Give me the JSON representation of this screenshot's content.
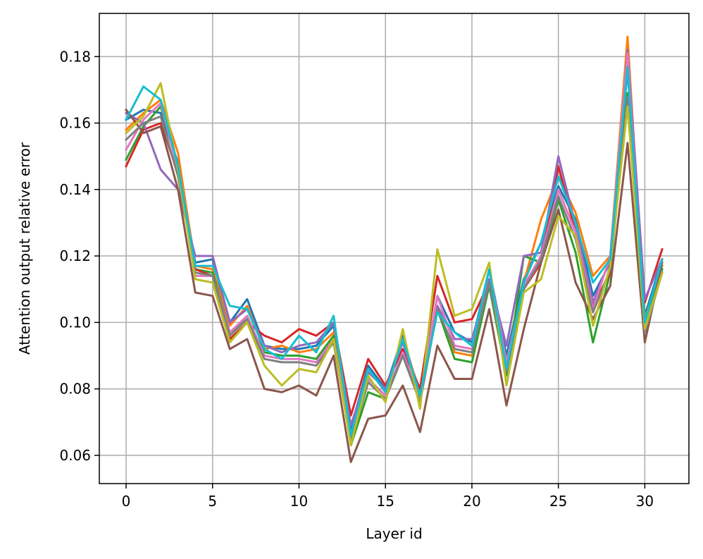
{
  "chart_data": {
    "type": "line",
    "title": "",
    "xlabel": "Layer id",
    "ylabel": "Attention output relative error",
    "xlim": [
      -1.55,
      32.55
    ],
    "ylim": [
      0.0515,
      0.193
    ],
    "xticks": [
      0,
      5,
      10,
      15,
      20,
      25,
      30
    ],
    "xtick_labels": [
      "0",
      "5",
      "10",
      "15",
      "20",
      "25",
      "30"
    ],
    "yticks": [
      0.06,
      0.08,
      0.1,
      0.12,
      0.14,
      0.16,
      0.18
    ],
    "ytick_labels": [
      "0.06",
      "0.08",
      "0.10",
      "0.12",
      "0.14",
      "0.16",
      "0.18"
    ],
    "grid": true,
    "legend": "none",
    "x": [
      0,
      1,
      2,
      3,
      4,
      5,
      6,
      7,
      8,
      9,
      10,
      11,
      12,
      13,
      14,
      15,
      16,
      17,
      18,
      19,
      20,
      21,
      22,
      23,
      24,
      25,
      26,
      27,
      28,
      29,
      30,
      31
    ],
    "series": [
      {
        "color": "#1f77b4",
        "values": [
          0.161,
          0.164,
          0.163,
          0.148,
          0.118,
          0.119,
          0.1,
          0.107,
          0.093,
          0.092,
          0.092,
          0.093,
          0.099,
          0.068,
          0.087,
          0.08,
          0.096,
          0.078,
          0.108,
          0.097,
          0.094,
          0.116,
          0.09,
          0.113,
          0.124,
          0.141,
          0.131,
          0.108,
          0.118,
          0.176,
          0.102,
          0.119
        ]
      },
      {
        "color": "#ff7f0e",
        "values": [
          0.158,
          0.163,
          0.167,
          0.151,
          0.117,
          0.116,
          0.099,
          0.105,
          0.092,
          0.093,
          0.091,
          0.092,
          0.097,
          0.064,
          0.086,
          0.079,
          0.095,
          0.079,
          0.104,
          0.091,
          0.09,
          0.113,
          0.086,
          0.112,
          0.131,
          0.144,
          0.133,
          0.114,
          0.12,
          0.186,
          0.101,
          0.117
        ]
      },
      {
        "color": "#2ca02c",
        "values": [
          0.149,
          0.159,
          0.165,
          0.147,
          0.116,
          0.115,
          0.097,
          0.101,
          0.091,
          0.09,
          0.09,
          0.089,
          0.096,
          0.063,
          0.079,
          0.077,
          0.09,
          0.076,
          0.104,
          0.089,
          0.088,
          0.111,
          0.084,
          0.12,
          0.118,
          0.137,
          0.121,
          0.094,
          0.115,
          0.169,
          0.099,
          0.116
        ]
      },
      {
        "color": "#d62728",
        "values": [
          0.147,
          0.158,
          0.16,
          0.145,
          0.116,
          0.114,
          0.095,
          0.1,
          0.096,
          0.094,
          0.098,
          0.096,
          0.1,
          0.072,
          0.089,
          0.081,
          0.092,
          0.08,
          0.114,
          0.1,
          0.101,
          0.112,
          0.087,
          0.11,
          0.118,
          0.147,
          0.127,
          0.105,
          0.115,
          0.178,
          0.106,
          0.122
        ]
      },
      {
        "color": "#9467bd",
        "values": [
          0.163,
          0.16,
          0.146,
          0.14,
          0.12,
          0.12,
          0.1,
          0.104,
          0.093,
          0.091,
          0.093,
          0.094,
          0.1,
          0.069,
          0.085,
          0.08,
          0.094,
          0.078,
          0.105,
          0.095,
          0.095,
          0.113,
          0.093,
          0.12,
          0.121,
          0.15,
          0.129,
          0.106,
          0.119,
          0.182,
          0.107,
          0.119
        ]
      },
      {
        "color": "#8c564b",
        "values": [
          0.164,
          0.157,
          0.159,
          0.14,
          0.109,
          0.108,
          0.092,
          0.095,
          0.08,
          0.079,
          0.081,
          0.078,
          0.09,
          0.058,
          0.071,
          0.072,
          0.081,
          0.067,
          0.093,
          0.083,
          0.083,
          0.104,
          0.075,
          0.098,
          0.118,
          0.134,
          0.112,
          0.101,
          0.111,
          0.154,
          0.094,
          0.118
        ]
      },
      {
        "color": "#e377c2",
        "values": [
          0.152,
          0.161,
          0.166,
          0.146,
          0.114,
          0.114,
          0.097,
          0.102,
          0.09,
          0.089,
          0.089,
          0.088,
          0.095,
          0.065,
          0.083,
          0.078,
          0.091,
          0.077,
          0.108,
          0.093,
          0.092,
          0.116,
          0.088,
          0.111,
          0.12,
          0.14,
          0.127,
          0.104,
          0.12,
          0.181,
          0.098,
          0.115
        ]
      },
      {
        "color": "#7f7f7f",
        "values": [
          0.155,
          0.16,
          0.162,
          0.144,
          0.115,
          0.114,
          0.096,
          0.101,
          0.089,
          0.088,
          0.088,
          0.087,
          0.094,
          0.064,
          0.082,
          0.077,
          0.09,
          0.076,
          0.104,
          0.092,
          0.091,
          0.112,
          0.085,
          0.11,
          0.119,
          0.138,
          0.125,
          0.103,
          0.116,
          0.168,
          0.097,
          0.115
        ]
      },
      {
        "color": "#bcbd22",
        "values": [
          0.157,
          0.162,
          0.172,
          0.146,
          0.113,
          0.112,
          0.094,
          0.1,
          0.087,
          0.081,
          0.086,
          0.085,
          0.095,
          0.063,
          0.084,
          0.076,
          0.098,
          0.074,
          0.122,
          0.102,
          0.104,
          0.118,
          0.081,
          0.109,
          0.113,
          0.132,
          0.126,
          0.099,
          0.117,
          0.165,
          0.098,
          0.115
        ]
      },
      {
        "color": "#17becf",
        "values": [
          0.161,
          0.171,
          0.167,
          0.147,
          0.117,
          0.117,
          0.105,
          0.104,
          0.092,
          0.089,
          0.096,
          0.091,
          0.102,
          0.066,
          0.086,
          0.079,
          0.095,
          0.078,
          0.103,
          0.097,
          0.093,
          0.116,
          0.086,
          0.112,
          0.124,
          0.144,
          0.13,
          0.112,
          0.119,
          0.177,
          0.1,
          0.119
        ]
      }
    ]
  }
}
